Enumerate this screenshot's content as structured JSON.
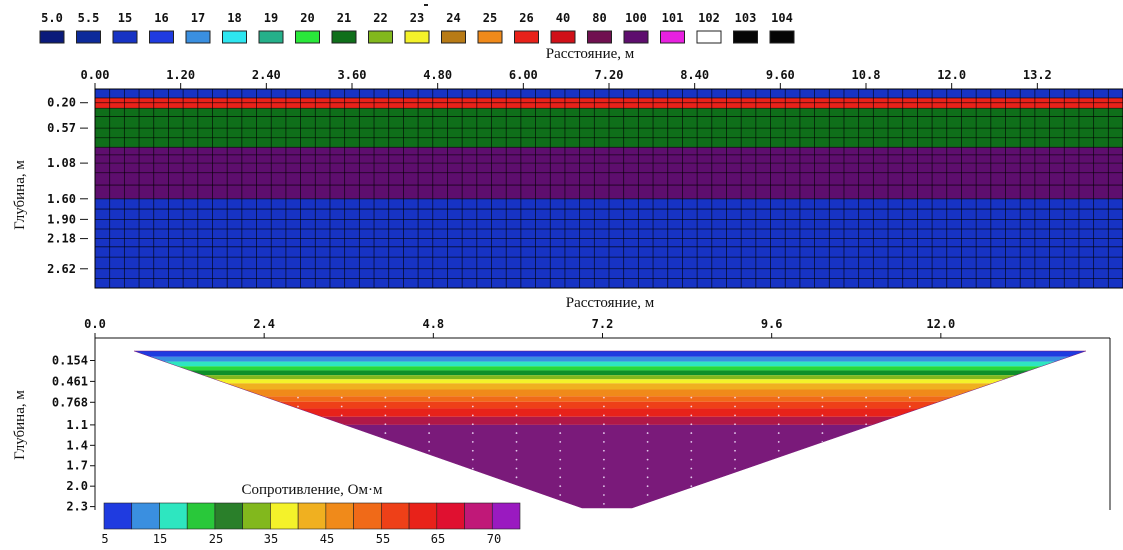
{
  "model_legend": {
    "items": [
      {
        "label": "5.0",
        "color": "#0a1a7a"
      },
      {
        "label": "5.5",
        "color": "#0d2a9a"
      },
      {
        "label": "15",
        "color": "#1733c4"
      },
      {
        "label": "16",
        "color": "#1f3be0"
      },
      {
        "label": "17",
        "color": "#3a8fe0"
      },
      {
        "label": "18",
        "color": "#2ee6f0"
      },
      {
        "label": "19",
        "color": "#25b08a"
      },
      {
        "label": "20",
        "color": "#29e83a"
      },
      {
        "label": "21",
        "color": "#0f6f1a"
      },
      {
        "label": "22",
        "color": "#82b81d"
      },
      {
        "label": "23",
        "color": "#f4f22a"
      },
      {
        "label": "24",
        "color": "#b87b16"
      },
      {
        "label": "25",
        "color": "#f08a1a"
      },
      {
        "label": "26",
        "color": "#e8221a"
      },
      {
        "label": "40",
        "color": "#d01018"
      },
      {
        "label": "80",
        "color": "#701050"
      },
      {
        "label": "100",
        "color": "#5e0e6e"
      },
      {
        "label": "101",
        "color": "#e820e0"
      },
      {
        "label": "102",
        "color": "#ffffff"
      },
      {
        "label": "103",
        "color": "#050505"
      },
      {
        "label": "104",
        "color": "#050505"
      }
    ]
  },
  "model_section": {
    "xlabel": "Расстояние, м",
    "ylabel": "Глубина, м",
    "x_ticks": [
      "0.00",
      "1.20",
      "2.40",
      "3.60",
      "4.80",
      "6.00",
      "7.20",
      "8.40",
      "9.60",
      "10.8",
      "12.0",
      "13.2"
    ],
    "x_tick_values": [
      0,
      1.2,
      2.4,
      3.6,
      4.8,
      6.0,
      7.2,
      8.4,
      9.6,
      10.8,
      12.0,
      13.2
    ],
    "xlim": [
      0,
      14.4
    ],
    "y_ticks": [
      "0.20",
      "0.57",
      "1.08",
      "1.60",
      "1.90",
      "2.18",
      "2.62"
    ],
    "y_tick_values": [
      0.2,
      0.57,
      1.08,
      1.6,
      1.9,
      2.18,
      2.62
    ],
    "ylim": [
      0,
      2.9
    ],
    "layers": [
      {
        "top": 0,
        "bottom": 0.13,
        "color": "#1733c4"
      },
      {
        "top": 0.13,
        "bottom": 0.28,
        "color": "#e8221a"
      },
      {
        "top": 0.28,
        "bottom": 0.85,
        "color": "#0f6f1a"
      },
      {
        "top": 0.85,
        "bottom": 1.08,
        "color": "#5e0e6e"
      },
      {
        "top": 1.08,
        "bottom": 1.6,
        "color": "#5e0e6e"
      },
      {
        "top": 1.6,
        "bottom": 2.9,
        "color": "#1733c4"
      }
    ],
    "columns": 70,
    "row_lines": [
      0.13,
      0.2,
      0.28,
      0.4,
      0.57,
      0.71,
      0.85,
      0.96,
      1.08,
      1.22,
      1.4,
      1.6,
      1.75,
      1.9,
      2.04,
      2.18,
      2.3,
      2.45,
      2.62,
      2.76
    ]
  },
  "inversion_section": {
    "xlabel": "Расстояние, м",
    "ylabel": "Глубина, м",
    "x_ticks": [
      "0.0",
      "2.4",
      "4.8",
      "7.2",
      "9.6",
      "12.0"
    ],
    "x_tick_values": [
      0,
      2.4,
      4.8,
      7.2,
      9.6,
      12.0
    ],
    "xlim": [
      0,
      14.4
    ],
    "y_ticks": [
      "0.154",
      "0.461",
      "0.768",
      "1.1",
      "1.4",
      "1.7",
      "2.0",
      "2.3"
    ],
    "y_tick_values": [
      0.154,
      0.461,
      0.768,
      1.1,
      1.4,
      1.7,
      2.0,
      2.3
    ],
    "ylim": [
      0,
      2.35
    ],
    "bands": [
      {
        "top": 0.0,
        "bottom": 0.1,
        "color": "#1f3be0"
      },
      {
        "top": 0.1,
        "bottom": 0.17,
        "color": "#3a8fe0"
      },
      {
        "top": 0.17,
        "bottom": 0.24,
        "color": "#2ee6c0"
      },
      {
        "top": 0.24,
        "bottom": 0.3,
        "color": "#29d83a"
      },
      {
        "top": 0.3,
        "bottom": 0.37,
        "color": "#0f8f2a"
      },
      {
        "top": 0.37,
        "bottom": 0.43,
        "color": "#82b81d"
      },
      {
        "top": 0.43,
        "bottom": 0.49,
        "color": "#f4f22a"
      },
      {
        "top": 0.49,
        "bottom": 0.58,
        "color": "#f0b020"
      },
      {
        "top": 0.58,
        "bottom": 0.68,
        "color": "#f08a1a"
      },
      {
        "top": 0.68,
        "bottom": 0.76,
        "color": "#f06a18"
      },
      {
        "top": 0.76,
        "bottom": 0.86,
        "color": "#ee4018"
      },
      {
        "top": 0.86,
        "bottom": 0.98,
        "color": "#e8221a"
      },
      {
        "top": 0.98,
        "bottom": 1.1,
        "color": "#b01848"
      },
      {
        "top": 1.1,
        "bottom": 2.35,
        "color": "#7a1a7a"
      }
    ],
    "colorbar": {
      "title": "Сопротивление, Ом·м",
      "colors": [
        "#1f3be0",
        "#3a8fe0",
        "#2ee6c0",
        "#29c83a",
        "#2a7f2a",
        "#82b81d",
        "#f4f22a",
        "#f0b020",
        "#f08a1a",
        "#f06a18",
        "#ee4018",
        "#e8221a",
        "#e01030",
        "#c01878",
        "#9a1ac0"
      ],
      "tick_labels": [
        "5",
        "15",
        "25",
        "35",
        "45",
        "55",
        "65",
        "70"
      ]
    }
  }
}
